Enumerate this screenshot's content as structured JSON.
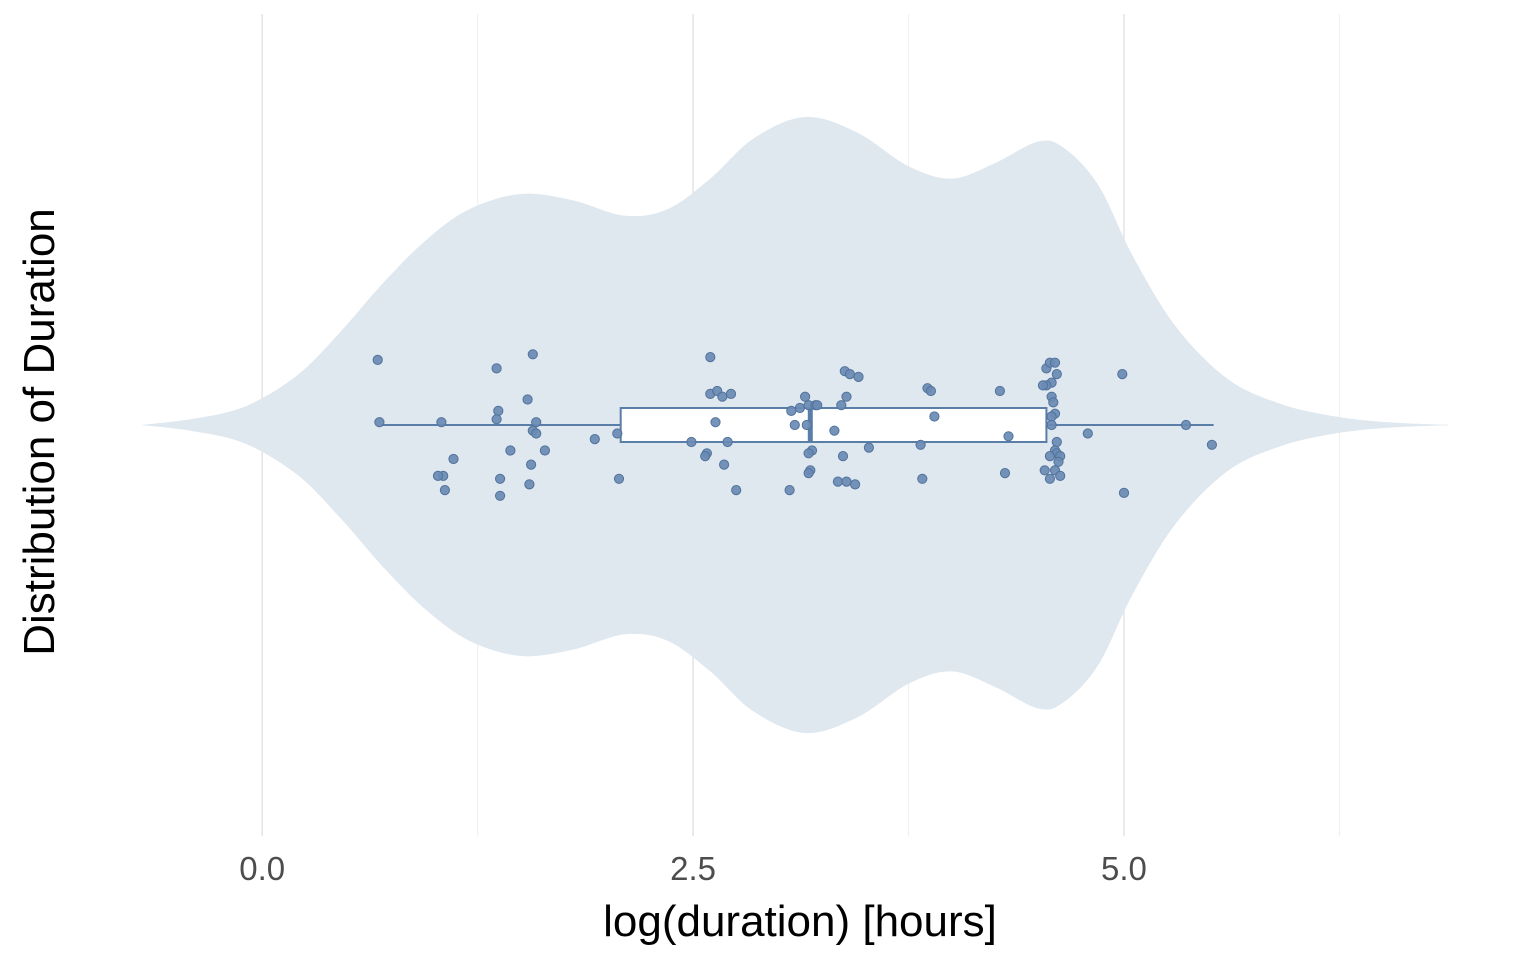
{
  "chart_data": {
    "type": "violin",
    "orientation": "horizontal",
    "xlabel": "log(duration) [hours]",
    "ylabel": "Distribution of Duration",
    "xlim": [
      -0.68,
      6.88
    ],
    "x_major_ticks": [
      0.0,
      2.5,
      5.0
    ],
    "x_tick_labels": [
      "0.0",
      "2.5",
      "5.0"
    ],
    "x_minor_ticks": [
      1.25,
      3.75,
      6.25
    ],
    "grid": true,
    "legend": "none",
    "colors": {
      "violin_fill": "#dfe7ef",
      "box_line": "#5a7ea8",
      "box_fill": "#ffffff",
      "point_fill": "#6a8bb3",
      "point_stroke": "#50729c",
      "grid": "#e8e8e8"
    },
    "violin": {
      "x_min": -0.7,
      "x_max": 6.9,
      "density_profile": [
        [
          -0.7,
          0.0
        ],
        [
          -0.4,
          0.02
        ],
        [
          -0.1,
          0.06
        ],
        [
          0.2,
          0.16
        ],
        [
          0.45,
          0.3
        ],
        [
          0.7,
          0.46
        ],
        [
          0.95,
          0.6
        ],
        [
          1.2,
          0.7
        ],
        [
          1.5,
          0.75
        ],
        [
          1.8,
          0.73
        ],
        [
          2.1,
          0.68
        ],
        [
          2.35,
          0.7
        ],
        [
          2.6,
          0.8
        ],
        [
          2.85,
          0.93
        ],
        [
          3.15,
          1.0
        ],
        [
          3.45,
          0.95
        ],
        [
          3.75,
          0.84
        ],
        [
          4.0,
          0.8
        ],
        [
          4.25,
          0.85
        ],
        [
          4.5,
          0.92
        ],
        [
          4.65,
          0.9
        ],
        [
          4.85,
          0.78
        ],
        [
          5.05,
          0.55
        ],
        [
          5.3,
          0.32
        ],
        [
          5.6,
          0.15
        ],
        [
          5.9,
          0.07
        ],
        [
          6.2,
          0.03
        ],
        [
          6.5,
          0.01
        ],
        [
          6.9,
          0.0
        ]
      ]
    },
    "box": {
      "whisker_low": 0.69,
      "q1": 2.08,
      "median": 3.18,
      "q3": 4.55,
      "whisker_high": 5.52
    },
    "points": [
      [
        0.67,
        0.23
      ],
      [
        0.68,
        0.01
      ],
      [
        1.04,
        0.01
      ],
      [
        1.05,
        -0.18
      ],
      [
        1.02,
        -0.18
      ],
      [
        1.06,
        -0.23
      ],
      [
        1.11,
        -0.12
      ],
      [
        1.36,
        0.2
      ],
      [
        1.37,
        0.05
      ],
      [
        1.36,
        0.02
      ],
      [
        1.38,
        -0.19
      ],
      [
        1.38,
        -0.25
      ],
      [
        1.44,
        -0.09
      ],
      [
        1.57,
        0.25
      ],
      [
        1.54,
        0.09
      ],
      [
        1.59,
        0.01
      ],
      [
        1.57,
        -0.02
      ],
      [
        1.59,
        -0.03
      ],
      [
        1.56,
        -0.14
      ],
      [
        1.55,
        -0.21
      ],
      [
        1.64,
        -0.09
      ],
      [
        1.93,
        -0.05
      ],
      [
        2.06,
        -0.03
      ],
      [
        2.07,
        -0.19
      ],
      [
        2.6,
        0.24
      ],
      [
        2.6,
        0.11
      ],
      [
        2.64,
        0.12
      ],
      [
        2.67,
        0.1
      ],
      [
        2.72,
        0.11
      ],
      [
        2.63,
        0.01
      ],
      [
        2.7,
        -0.06
      ],
      [
        2.49,
        -0.06
      ],
      [
        2.58,
        -0.1
      ],
      [
        2.57,
        -0.11
      ],
      [
        2.68,
        -0.14
      ],
      [
        2.75,
        -0.23
      ],
      [
        3.15,
        0.1
      ],
      [
        3.12,
        0.06
      ],
      [
        3.17,
        0.07
      ],
      [
        3.21,
        0.07
      ],
      [
        3.22,
        0.07
      ],
      [
        3.07,
        0.05
      ],
      [
        3.09,
        0.0
      ],
      [
        3.16,
        0.0
      ],
      [
        3.19,
        -0.09
      ],
      [
        3.17,
        -0.1
      ],
      [
        3.18,
        -0.16
      ],
      [
        3.17,
        -0.17
      ],
      [
        3.06,
        -0.23
      ],
      [
        3.32,
        -0.02
      ],
      [
        3.39,
        0.1
      ],
      [
        3.36,
        0.07
      ],
      [
        3.38,
        0.19
      ],
      [
        3.41,
        0.18
      ],
      [
        3.46,
        0.17
      ],
      [
        3.37,
        -0.11
      ],
      [
        3.34,
        -0.2
      ],
      [
        3.39,
        -0.2
      ],
      [
        3.44,
        -0.21
      ],
      [
        3.52,
        -0.08
      ],
      [
        3.86,
        0.13
      ],
      [
        3.88,
        0.12
      ],
      [
        3.9,
        0.03
      ],
      [
        3.82,
        -0.07
      ],
      [
        3.83,
        -0.19
      ],
      [
        4.28,
        0.12
      ],
      [
        4.33,
        -0.04
      ],
      [
        4.31,
        -0.17
      ],
      [
        4.55,
        0.2
      ],
      [
        4.57,
        0.22
      ],
      [
        4.6,
        0.22
      ],
      [
        4.61,
        0.18
      ],
      [
        4.58,
        0.15
      ],
      [
        4.55,
        0.14
      ],
      [
        4.53,
        0.14
      ],
      [
        4.58,
        0.1
      ],
      [
        4.59,
        0.08
      ],
      [
        4.6,
        0.04
      ],
      [
        4.58,
        0.03
      ],
      [
        4.58,
        0.0
      ],
      [
        4.61,
        -0.06
      ],
      [
        4.6,
        -0.09
      ],
      [
        4.61,
        -0.1
      ],
      [
        4.57,
        -0.11
      ],
      [
        4.63,
        -0.11
      ],
      [
        4.62,
        -0.13
      ],
      [
        4.6,
        -0.16
      ],
      [
        4.54,
        -0.16
      ],
      [
        4.57,
        -0.19
      ],
      [
        4.63,
        -0.18
      ],
      [
        4.79,
        -0.03
      ],
      [
        4.99,
        0.18
      ],
      [
        5.0,
        -0.24
      ],
      [
        5.36,
        0.0
      ],
      [
        5.51,
        -0.07
      ]
    ]
  }
}
